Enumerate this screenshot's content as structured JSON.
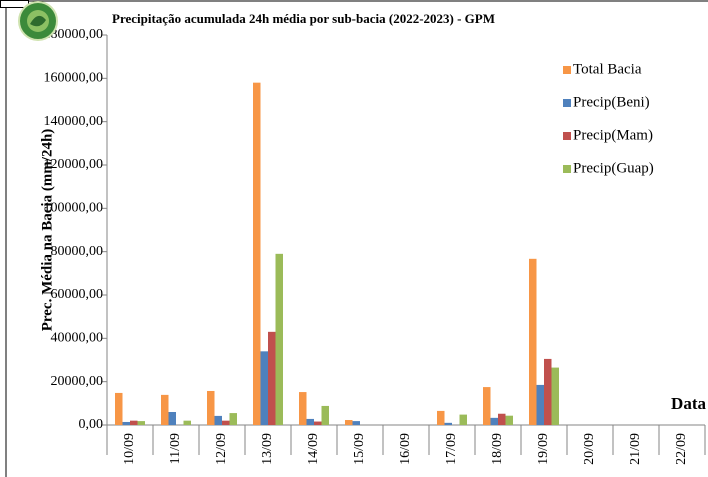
{
  "chart_data": {
    "type": "bar",
    "title": "Precipitação acumulada 24h média por sub-bacia (2022-2023) - GPM",
    "y_label": "Prec. Média na Bacia (mm/24h)",
    "x_label": "Data",
    "categories": [
      "10/09",
      "11/09",
      "12/09",
      "13/09",
      "14/09",
      "15/09",
      "16/09",
      "17/09",
      "18/09",
      "19/09",
      "20/09",
      "21/09",
      "22/09"
    ],
    "series": [
      {
        "name": "Total Bacia",
        "color": "#f79646",
        "values": [
          14800,
          13900,
          15700,
          158000,
          15200,
          2300,
          0,
          6500,
          17500,
          76700,
          0,
          0,
          0
        ]
      },
      {
        "name": "Precip(Beni)",
        "color": "#4f81bd",
        "values": [
          1400,
          6000,
          4200,
          34000,
          2800,
          1800,
          0,
          1000,
          3300,
          18500,
          0,
          0,
          0
        ]
      },
      {
        "name": "Precip(Mam)",
        "color": "#c0504d",
        "values": [
          2000,
          0,
          2000,
          43000,
          1600,
          0,
          0,
          0,
          5200,
          30500,
          0,
          0,
          0
        ]
      },
      {
        "name": "Precip(Guap)",
        "color": "#9bbb59",
        "values": [
          1800,
          2000,
          5500,
          79000,
          8800,
          0,
          0,
          4800,
          4300,
          26500,
          0,
          0,
          0
        ]
      }
    ],
    "ylim": [
      0,
      180000
    ],
    "yticks": [
      {
        "value": 0,
        "label": "0,00"
      },
      {
        "value": 20000,
        "label": "20000,00"
      },
      {
        "value": 40000,
        "label": "40000,00"
      },
      {
        "value": 60000,
        "label": "60000,00"
      },
      {
        "value": 80000,
        "label": "80000,00"
      },
      {
        "value": 100000,
        "label": "100000,00"
      },
      {
        "value": 120000,
        "label": "120000,00"
      },
      {
        "value": 140000,
        "label": "140000,00"
      },
      {
        "value": 160000,
        "label": "160000,00"
      },
      {
        "value": 180000,
        "label": "180000,00"
      }
    ],
    "legend": "top-right"
  }
}
